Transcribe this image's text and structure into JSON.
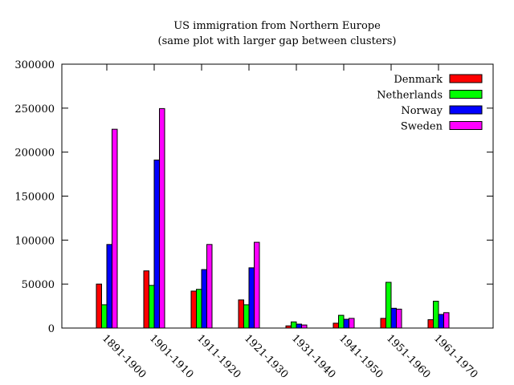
{
  "chart_data": {
    "type": "bar",
    "title": "US immigration from Northern Europe",
    "subtitle": "(same plot with larger gap between clusters)",
    "xlabel": "",
    "ylabel": "",
    "ylim": [
      0,
      300000
    ],
    "yticks": [
      0,
      50000,
      100000,
      150000,
      200000,
      250000,
      300000
    ],
    "legend_position": "top-right",
    "grid": false,
    "categories": [
      "1891-1900",
      "1901-1910",
      "1911-1920",
      "1921-1930",
      "1931-1940",
      "1941-1950",
      "1951-1960",
      "1961-1970"
    ],
    "series": [
      {
        "name": "Denmark",
        "color": "#ff0000",
        "values": [
          50000,
          65000,
          42000,
          32000,
          2500,
          5500,
          11000,
          9500
        ]
      },
      {
        "name": "Netherlands",
        "color": "#00ff00",
        "values": [
          26500,
          48500,
          44000,
          26500,
          7000,
          14500,
          52000,
          30500
        ]
      },
      {
        "name": "Norway",
        "color": "#0000ff",
        "values": [
          95000,
          191000,
          66500,
          68500,
          4500,
          10000,
          22500,
          15500
        ]
      },
      {
        "name": "Sweden",
        "color": "#ff00ff",
        "values": [
          226000,
          249500,
          95000,
          97500,
          3500,
          11000,
          21500,
          17500
        ]
      }
    ]
  }
}
